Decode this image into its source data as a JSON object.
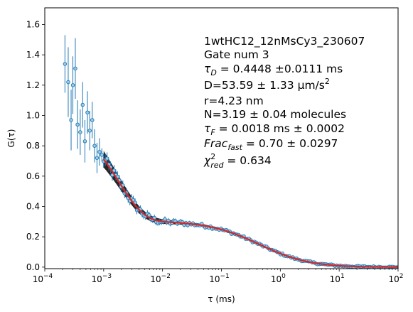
{
  "chart_data": {
    "type": "scatter",
    "xlabel": "τ (ms)",
    "ylabel": "G(τ)",
    "xscale": "log",
    "xlim": [
      0.0001,
      100
    ],
    "ylim": [
      -0.01,
      1.71
    ],
    "grid": false,
    "x_ticks": [
      {
        "value": 0.0001,
        "base": "10",
        "exp": "−4"
      },
      {
        "value": 0.001,
        "base": "10",
        "exp": "−3"
      },
      {
        "value": 0.01,
        "base": "10",
        "exp": "−2"
      },
      {
        "value": 0.1,
        "base": "10",
        "exp": "−1"
      },
      {
        "value": 1,
        "base": "10",
        "exp": "0"
      },
      {
        "value": 10,
        "base": "10",
        "exp": "1"
      },
      {
        "value": 100,
        "base": "10",
        "exp": "2"
      }
    ],
    "y_ticks": [
      {
        "value": 0.0,
        "label": "0.0"
      },
      {
        "value": 0.2,
        "label": "0.2"
      },
      {
        "value": 0.4,
        "label": "0.4"
      },
      {
        "value": 0.6,
        "label": "0.6"
      },
      {
        "value": 0.8,
        "label": "0.8"
      },
      {
        "value": 1.0,
        "label": "1.0"
      },
      {
        "value": 1.2,
        "label": "1.2"
      },
      {
        "value": 1.4,
        "label": "1.4"
      },
      {
        "value": 1.6,
        "label": "1.6"
      }
    ],
    "colors": {
      "data": "#1f77b4",
      "fit": "#d62728",
      "fit_band": "#000000"
    },
    "early_points": [
      {
        "x": 0.00022,
        "y": 1.34,
        "err": 0.19
      },
      {
        "x": 0.00025,
        "y": 1.22,
        "err": 0.23
      },
      {
        "x": 0.00028,
        "y": 0.97,
        "err": 0.2
      },
      {
        "x": 0.0003,
        "y": 1.2,
        "err": 0.19
      },
      {
        "x": 0.00033,
        "y": 1.31,
        "err": 0.2
      },
      {
        "x": 0.00036,
        "y": 0.94,
        "err": 0.16
      },
      {
        "x": 0.0004,
        "y": 0.89,
        "err": 0.15
      },
      {
        "x": 0.00044,
        "y": 1.07,
        "err": 0.15
      },
      {
        "x": 0.00048,
        "y": 0.83,
        "err": 0.14
      },
      {
        "x": 0.00053,
        "y": 1.02,
        "err": 0.14
      },
      {
        "x": 0.00058,
        "y": 0.9,
        "err": 0.13
      },
      {
        "x": 0.00064,
        "y": 0.97,
        "err": 0.12
      },
      {
        "x": 0.0007,
        "y": 0.8,
        "err": 0.11
      },
      {
        "x": 0.00077,
        "y": 0.72,
        "err": 0.1
      },
      {
        "x": 0.00085,
        "y": 0.76,
        "err": 0.09
      }
    ],
    "fit_model": {
      "G0": 0.305,
      "tau_D_ms": 0.4448,
      "aspect_ratio": 5,
      "frac_fast": 0.7,
      "tau_F_ms": 0.0018,
      "fit_start_ms": 0.001,
      "noise_amp": 0.035,
      "n_points": 170
    },
    "annotation": [
      {
        "kind": "plain",
        "text": "1wtHC12_12nMsCy3_230607"
      },
      {
        "kind": "plain",
        "text": "Gate num 3"
      },
      {
        "kind": "sub",
        "sym": "τ",
        "sub": "D",
        "rest": " = 0.4448 ±0.0111 ms"
      },
      {
        "kind": "sup",
        "text": "D=53.59 ± 1.33 μm/s",
        "sup": "2"
      },
      {
        "kind": "plain",
        "text": "r=4.23 nm"
      },
      {
        "kind": "plain",
        "text": "N=3.19 ± 0.04 molecules"
      },
      {
        "kind": "sub",
        "sym": "τ",
        "sub": "F",
        "rest": " = 0.0018 ms ± 0.0002"
      },
      {
        "kind": "sub",
        "sym": "Frac",
        "sub": "fast",
        "rest": " = 0.70 ± 0.0297"
      },
      {
        "kind": "subsup",
        "sym": "χ",
        "sub": "red",
        "sup": "2",
        "rest": " = 0.634"
      }
    ]
  }
}
